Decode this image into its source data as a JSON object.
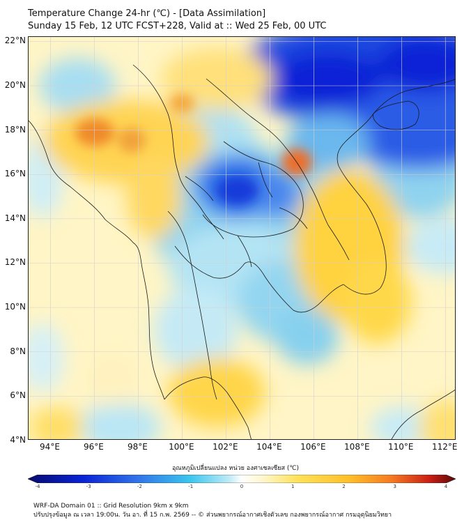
{
  "header": {
    "line1": "Temperature Change 24-hr (℃) - [Data Assimilation]",
    "line2": "Sunday 15 Feb, 12 UTC FCST+228, Valid at :: Wed 25 Feb, 00 UTC"
  },
  "map": {
    "lon_range": [
      93,
      112.5
    ],
    "lat_range": [
      4,
      22.2
    ],
    "x_ticks": [
      "94°E",
      "96°E",
      "98°E",
      "100°E",
      "102°E",
      "104°E",
      "106°E",
      "108°E",
      "110°E",
      "112°E"
    ],
    "y_ticks": [
      "22°N",
      "20°N",
      "18°N",
      "16°N",
      "14°N",
      "12°N",
      "10°N",
      "8°N",
      "6°N",
      "4°N"
    ],
    "colors": {
      "deep_blue": "#0a23d6",
      "blue": "#2f6fe8",
      "light_blue": "#8fd6f0",
      "pale": "#fff6cc",
      "yellow": "#ffd84a",
      "orange": "#f5a623",
      "red_orange": "#e8622a"
    }
  },
  "colorbar": {
    "label": "อุณหภูมิเปลี่ยนแปลง หน่วย องศาเซลเซียส (℃)",
    "min": -4,
    "max": 4,
    "ticks": [
      "-4",
      "-3",
      "-2",
      "-1",
      "0",
      "1",
      "2",
      "3",
      "4"
    ]
  },
  "footer": {
    "line1": "WRF-DA Domain 01 :: Grid Resolution 9km x 9km",
    "line2": "ปรับปรุงข้อมูล ณ เวลา 19:00น. วัน อา. ที่ 15 ก.พ. 2569 -- © ส่วนพยากรณ์อากาศเชิงตัวเลข กองพยากรณ์อากาศ กรมอุตุนิยมวิทยา"
  }
}
